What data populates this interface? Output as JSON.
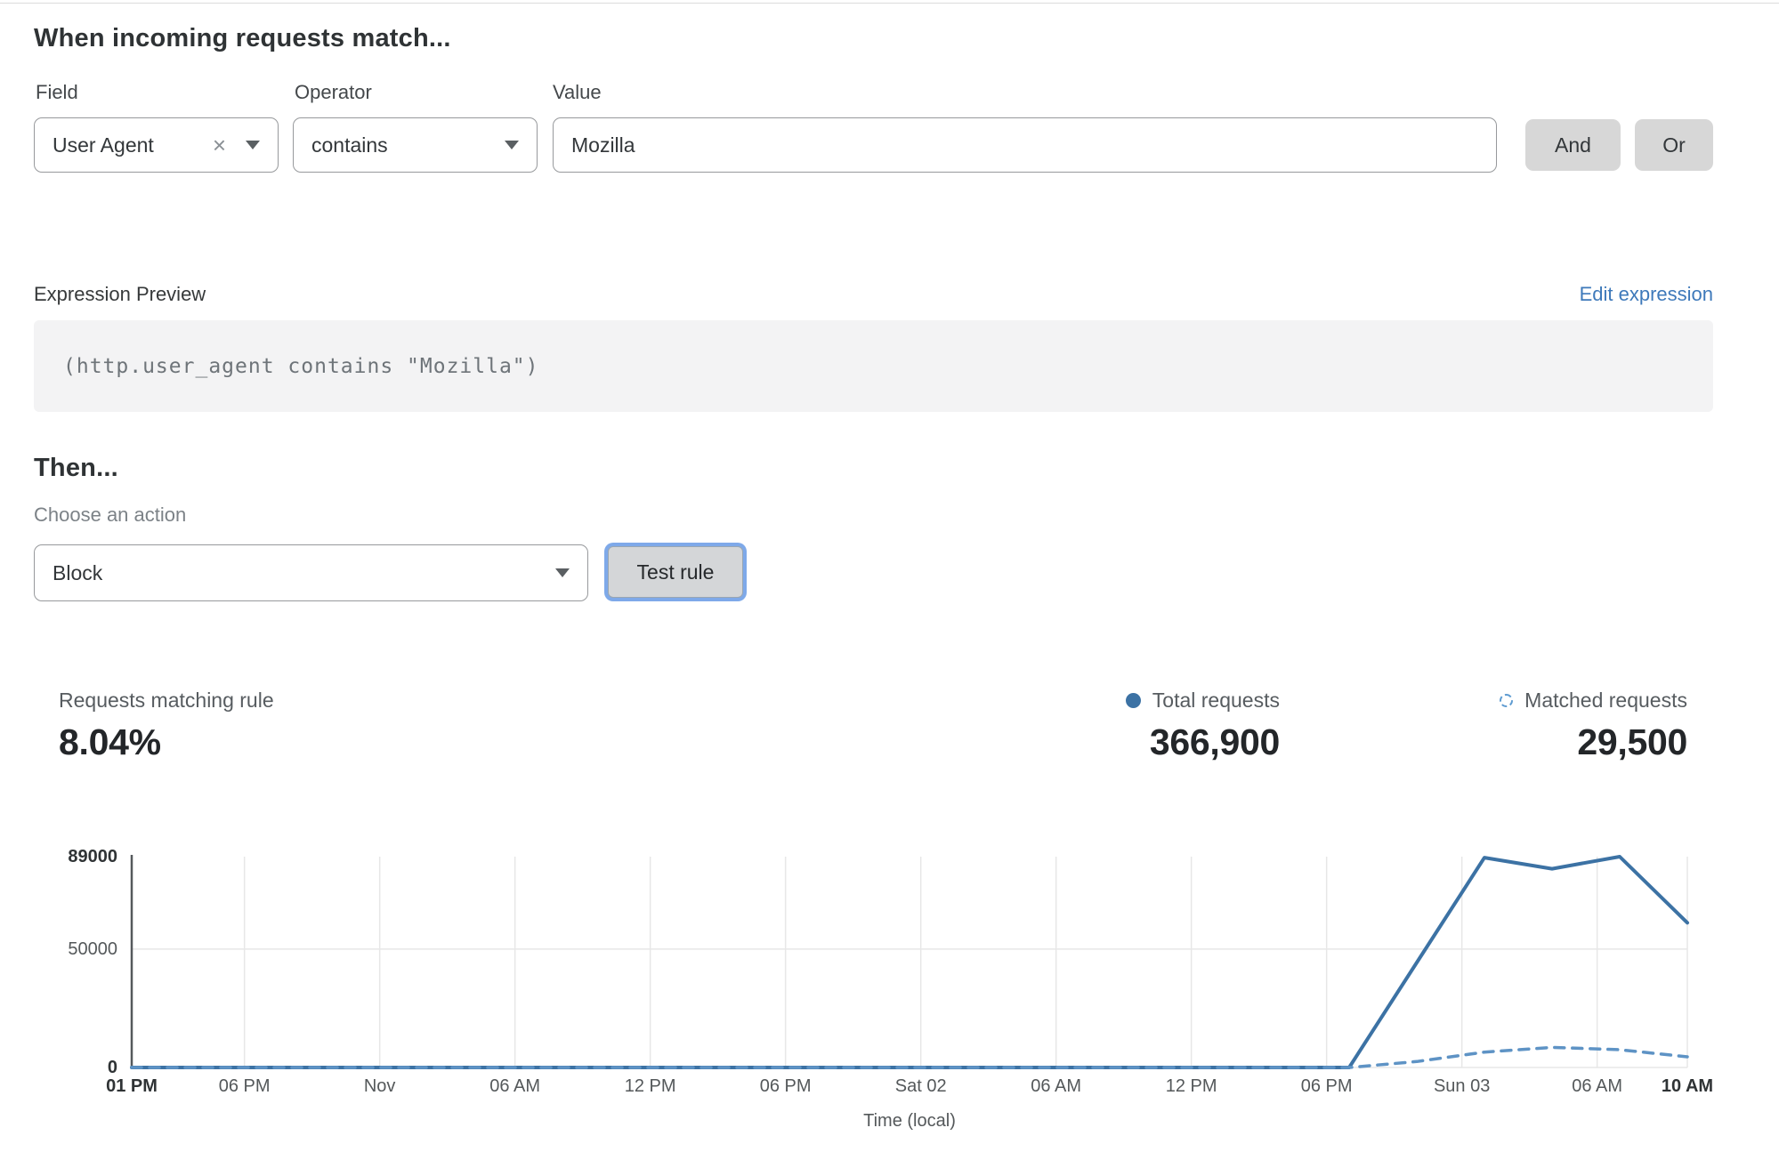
{
  "match_section": {
    "heading": "When incoming requests match...",
    "field": {
      "label": "Field",
      "value": "User Agent",
      "clear_icon": "×"
    },
    "operator": {
      "label": "Operator",
      "value": "contains"
    },
    "value_field": {
      "label": "Value",
      "value": "Mozilla"
    },
    "and_label": "And",
    "or_label": "Or"
  },
  "expression": {
    "label": "Expression Preview",
    "edit_link": "Edit expression",
    "code": "(http.user_agent contains \"Mozilla\")"
  },
  "then_section": {
    "heading": "Then...",
    "action_label": "Choose an action",
    "action_value": "Block",
    "test_button": "Test rule"
  },
  "stats": {
    "matching": {
      "label": "Requests matching rule",
      "value": "8.04%"
    },
    "total": {
      "label": "Total requests",
      "value": "366,900"
    },
    "matched": {
      "label": "Matched requests",
      "value": "29,500"
    }
  },
  "colors": {
    "total_line": "#3c72a4",
    "matched_line": "#5e93c5",
    "grid": "#e7e7e7",
    "axis": "#55595c",
    "link_blue": "#3e79ba"
  },
  "chart_data": {
    "type": "line",
    "title": "",
    "xlabel": "Time (local)",
    "ylabel": "",
    "ylim": [
      0,
      89000
    ],
    "x_span_hours": 69,
    "grid": true,
    "legend_position": "top-right",
    "yticks": [
      {
        "label": "89000",
        "value": 89000,
        "bold": true
      },
      {
        "label": "50000",
        "value": 50000,
        "bold": false
      },
      {
        "label": "0",
        "value": 0,
        "bold": true
      }
    ],
    "x_tick_labels": [
      {
        "label": "01 PM",
        "hour": 0,
        "bold": true
      },
      {
        "label": "06 PM",
        "hour": 5,
        "bold": false
      },
      {
        "label": "Nov",
        "hour": 11,
        "bold": false
      },
      {
        "label": "06 AM",
        "hour": 17,
        "bold": false
      },
      {
        "label": "12 PM",
        "hour": 23,
        "bold": false
      },
      {
        "label": "06 PM",
        "hour": 29,
        "bold": false
      },
      {
        "label": "Sat 02",
        "hour": 35,
        "bold": false
      },
      {
        "label": "06 AM",
        "hour": 41,
        "bold": false
      },
      {
        "label": "12 PM",
        "hour": 47,
        "bold": false
      },
      {
        "label": "06 PM",
        "hour": 53,
        "bold": false
      },
      {
        "label": "Sun 03",
        "hour": 59,
        "bold": false
      },
      {
        "label": "06 AM",
        "hour": 65,
        "bold": false
      },
      {
        "label": "10 AM",
        "hour": 69,
        "bold": true
      }
    ],
    "point_hours": [
      0,
      3,
      6,
      9,
      12,
      15,
      18,
      21,
      24,
      27,
      30,
      33,
      36,
      39,
      42,
      45,
      48,
      51,
      54,
      57,
      60,
      63,
      66,
      69
    ],
    "series": [
      {
        "name": "Total requests",
        "style": "solid",
        "color": "#3c72a4",
        "values": [
          0,
          0,
          0,
          0,
          0,
          0,
          0,
          0,
          0,
          0,
          0,
          0,
          0,
          0,
          0,
          0,
          0,
          0,
          0,
          44300,
          88600,
          83900,
          89000,
          61100
        ]
      },
      {
        "name": "Matched requests",
        "style": "dashed",
        "color": "#5e93c5",
        "values": [
          0,
          0,
          0,
          0,
          0,
          0,
          0,
          0,
          0,
          0,
          0,
          0,
          0,
          0,
          0,
          0,
          0,
          0,
          0,
          2500,
          6500,
          8500,
          7500,
          4500
        ]
      }
    ]
  }
}
